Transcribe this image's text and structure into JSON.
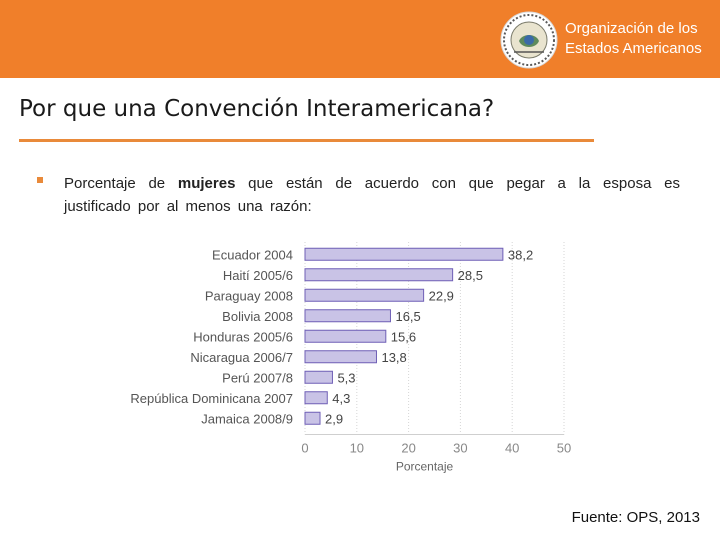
{
  "header": {
    "org_name_line1": "Organización de los",
    "org_name_line2": "Estados Americanos",
    "logo": "oas-seal-icon",
    "bar_color": "#f07f2a"
  },
  "slide": {
    "title": "Por que una Convención Interamericana?",
    "bullet": {
      "before": "Porcentaje de ",
      "emphasis": "mujeres",
      "after": " que están de acuerdo con que pegar a la esposa es justificado por al menos una razón:"
    },
    "source": "Fuente: OPS, 2013"
  },
  "chart_data": {
    "type": "bar",
    "orientation": "horizontal",
    "title": "",
    "xlabel": "Porcentaje",
    "ylabel": "",
    "categories": [
      "Ecuador 2004",
      "Haití 2005/6",
      "Paraguay 2008",
      "Bolivia 2008",
      "Honduras 2005/6",
      "Nicaragua 2006/7",
      "Perú 2007/8",
      "República Dominicana 2007",
      "Jamaica 2008/9"
    ],
    "values": [
      38.2,
      28.5,
      22.9,
      16.5,
      15.6,
      13.8,
      5.3,
      4.3,
      2.9
    ],
    "value_labels": [
      "38,2",
      "28,5",
      "22,9",
      "16,5",
      "15,6",
      "13,8",
      "5,3",
      "4,3",
      "2,9"
    ],
    "xlim": [
      0,
      50
    ],
    "xticks": [
      0,
      10,
      20,
      30,
      40,
      50
    ],
    "bar_color": "#c9c3e6",
    "bar_border": "#6f5fb6",
    "grid": true
  }
}
